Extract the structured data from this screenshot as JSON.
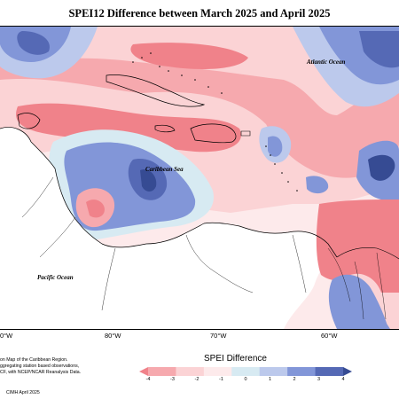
{
  "title": "SPEI12 Difference between March 2025 and April 2025",
  "places": {
    "atlantic": "Atlantic Ocean",
    "caribbean": "Caribbean Sea",
    "pacific": "Pacific Ocean"
  },
  "longitude_labels": [
    "0°W",
    "80°W",
    "70°W",
    "60°W"
  ],
  "notes": [
    "on Map of the Caribbean Region.",
    "ggregating station based observations,",
    "CF, with NCEP/NCAR Reanalysis Data."
  ],
  "credit": "CIMH April 2025",
  "legend": {
    "title": "SPEI Difference",
    "ticks": [
      "-4",
      "-3",
      "-2",
      "-1",
      "0",
      "1",
      "2",
      "3",
      "4"
    ],
    "colors": [
      "#f0828a",
      "#f6a9ae",
      "#fbd3d5",
      "#fdeaeb",
      "#d7eaf2",
      "#bcc9ec",
      "#8296d8",
      "#5569b5",
      "#364b93"
    ]
  },
  "colors": {
    "land": "#ffffff",
    "neutral": "#fdeaeb",
    "dry_light": "#fbd3d5",
    "dry": "#f6a9ae",
    "dry_strong": "#f0828a",
    "wet_light": "#d7eaf2",
    "wet": "#bcc9ec",
    "wet_mid": "#8296d8",
    "wet_strong": "#5569b5",
    "wet_max": "#364b93"
  }
}
